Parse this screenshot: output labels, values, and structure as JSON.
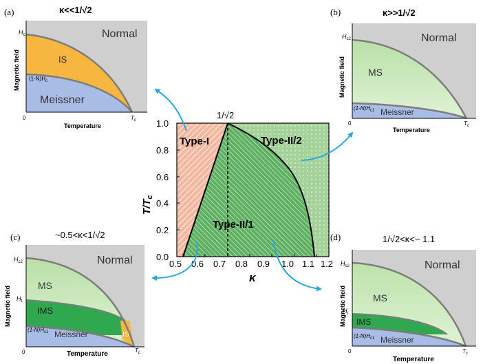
{
  "panels": {
    "a": {
      "label": "(a)",
      "title": "κ<<1/√2",
      "ylabel": "Magnetic field",
      "xlabel": "Temperature",
      "origin": "0",
      "tc": "T",
      "tc_sub": "c",
      "h_tick": "H",
      "h_tick_sub": "c",
      "nh_tick": "(1-N)H",
      "nh_tick_sub": "c",
      "regions": [
        "Normal",
        "IS",
        "Meissner"
      ],
      "colors": {
        "normal": "#cfcfcf",
        "is": "#f6b640",
        "meissner": "#a9bce6"
      }
    },
    "b": {
      "label": "(b)",
      "title": "κ>>1/√2",
      "ylabel": "Magnetic field",
      "xlabel": "Temperature",
      "origin": "0",
      "tc": "T",
      "tc_sub": "c",
      "h_tick": "H",
      "h_tick_sub": "c2",
      "nh_label": "(1-N)H",
      "nh_label_sub": "c1",
      "regions": [
        "Normal",
        "MS",
        "Meissner"
      ],
      "colors": {
        "normal": "#cfcfcf",
        "ms": "#c6e6b6",
        "meissner": "#a9bce6"
      }
    },
    "c": {
      "label": "(c)",
      "title": "~0.5<κ<1/√2",
      "ylabel": "Magnetic field",
      "xlabel": "Temperature",
      "origin": "0",
      "tc": "T",
      "tc_sub": "c",
      "h_tick": "H",
      "h_tick_sub": "c2",
      "ht_tick": "H",
      "ht_tick_sub": "t",
      "nh_label": "(1-N)H",
      "nh_label_sub": "c1",
      "regions": [
        "Normal",
        "MS",
        "IMS",
        "Meissner",
        "IS"
      ],
      "colors": {
        "normal": "#cfcfcf",
        "ms": "#c6e6b6",
        "ims": "#2fa84f",
        "meissner": "#a9bce6",
        "is": "#f6b640"
      }
    },
    "d": {
      "label": "(d)",
      "title": "1/√2<κ<~ 1.1",
      "ylabel": "Magnetic field",
      "xlabel": "Temperature",
      "origin": "0",
      "tc": "T",
      "tc_sub": "c",
      "h_tick": "H",
      "h_tick_sub": "c2",
      "ht_tick": "H",
      "ht_tick_sub": "t",
      "nh_label": "(1-N)H",
      "nh_label_sub": "c1",
      "regions": [
        "Normal",
        "MS",
        "IMS",
        "Meissner"
      ],
      "colors": {
        "normal": "#cfcfcf",
        "ms": "#c6e6b6",
        "ims": "#2fa84f",
        "meissner": "#a9bce6"
      }
    }
  },
  "center": {
    "top_label": "1/√2",
    "ylabel_main": "T/T",
    "ylabel_sub": "c",
    "xlabel": "κ",
    "x_ticks": [
      "0.5",
      "0.6",
      "0.7",
      "0.8",
      "0.9",
      "1.0",
      "1.1",
      "1.2"
    ],
    "y_ticks": [
      "0.0",
      "0.2",
      "0.4",
      "0.6",
      "0.8",
      "1.0"
    ],
    "region_labels": [
      "Type-I",
      "Type-II/2",
      "Type-II/1"
    ],
    "colors": {
      "type1": "#f2b9a0",
      "type2_2": "#a4d29a",
      "type2_1": "#5fb063",
      "arrow": "#2aa7d9"
    }
  }
}
